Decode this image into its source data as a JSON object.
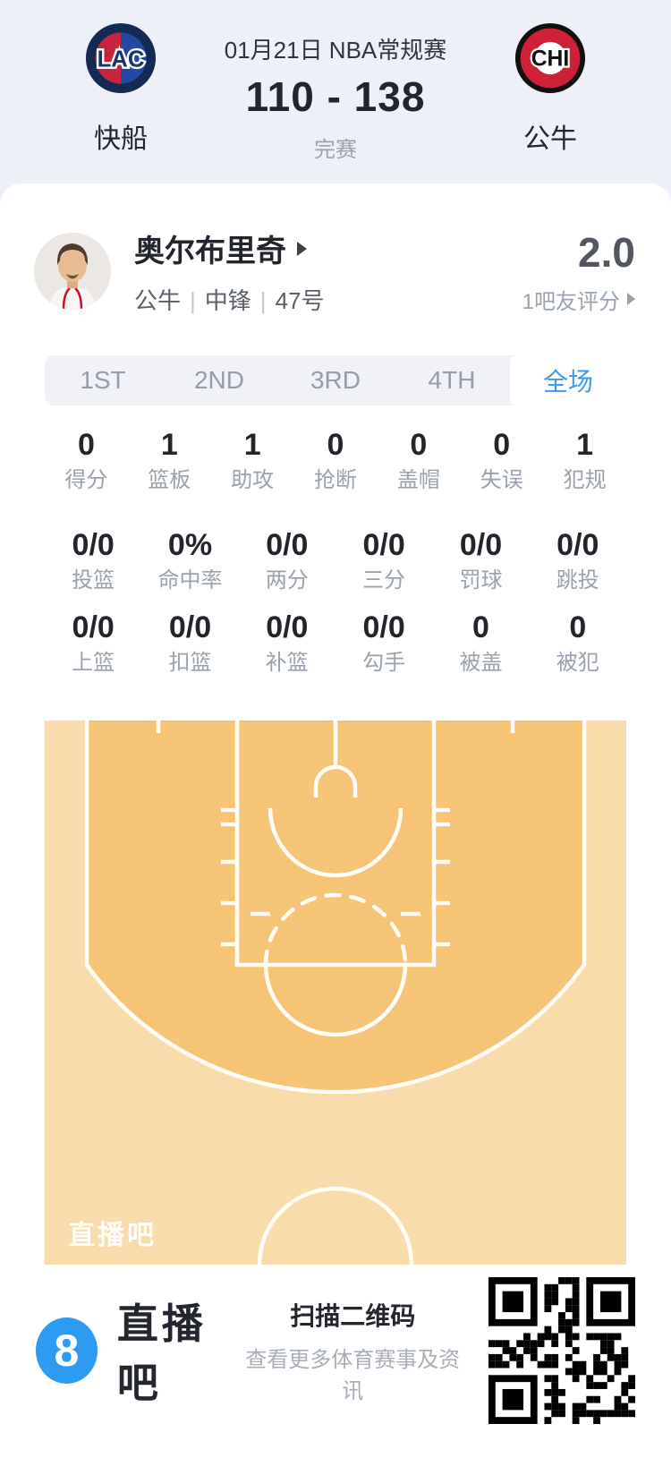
{
  "header": {
    "date": "01月21日 NBA常规赛",
    "score": "110 - 138",
    "status": "完赛",
    "teams": {
      "left": {
        "name": "快船",
        "abbr": "LAC"
      },
      "right": {
        "name": "公牛",
        "abbr": "CHI"
      }
    }
  },
  "player": {
    "name": "奥尔布里奇",
    "team": "公牛",
    "divider": "|",
    "position": "中锋",
    "number": "47号",
    "rating": "2.0",
    "rating_label": "1吧友评分"
  },
  "tabs": [
    {
      "label": "1ST",
      "active": false
    },
    {
      "label": "2ND",
      "active": false
    },
    {
      "label": "3RD",
      "active": false
    },
    {
      "label": "4TH",
      "active": false
    },
    {
      "label": "全场",
      "active": true
    }
  ],
  "stats": {
    "row1": [
      {
        "value": "0",
        "label": "得分"
      },
      {
        "value": "1",
        "label": "篮板"
      },
      {
        "value": "1",
        "label": "助攻"
      },
      {
        "value": "0",
        "label": "抢断"
      },
      {
        "value": "0",
        "label": "盖帽"
      },
      {
        "value": "0",
        "label": "失误"
      },
      {
        "value": "1",
        "label": "犯规"
      }
    ],
    "row2": [
      {
        "value": "0/0",
        "label": "投篮"
      },
      {
        "value": "0%",
        "label": "命中率"
      },
      {
        "value": "0/0",
        "label": "两分"
      },
      {
        "value": "0/0",
        "label": "三分"
      },
      {
        "value": "0/0",
        "label": "罚球"
      },
      {
        "value": "0/0",
        "label": "跳投"
      }
    ],
    "row3": [
      {
        "value": "0/0",
        "label": "上篮"
      },
      {
        "value": "0/0",
        "label": "扣篮"
      },
      {
        "value": "0/0",
        "label": "补篮"
      },
      {
        "value": "0/0",
        "label": "勾手"
      },
      {
        "value": "0",
        "label": "被盖"
      },
      {
        "value": "0",
        "label": "被犯"
      }
    ]
  },
  "court": {
    "watermark": "直播吧",
    "colors": {
      "outer": "#f8dcac",
      "inner": "#f5c476",
      "lines": "#fffdf8"
    }
  },
  "footer": {
    "brand": "直播吧",
    "brand_badge": "8",
    "qr_title": "扫描二维码",
    "qr_subtitle": "查看更多体育赛事及资讯"
  },
  "colors": {
    "accent_blue": "#3898f3",
    "page_background": "#edf0f6",
    "lac_navy": "#132a53",
    "lac_red": "#c9243f",
    "lac_blue": "#2149a1",
    "chi_red": "#ce2036",
    "text_dark": "#22252b",
    "text_gray": "#9aa3ad"
  }
}
